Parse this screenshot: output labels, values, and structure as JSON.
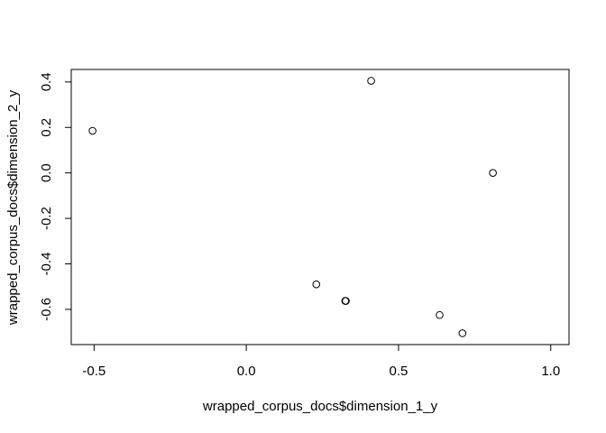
{
  "chart_data": {
    "type": "scatter",
    "xlabel": "wrapped_corpus_docs$dimension_1_y",
    "ylabel": "wrapped_corpus_docs$dimension_2_y",
    "xlim": [
      -0.575,
      1.06
    ],
    "ylim": [
      -0.755,
      0.455
    ],
    "grid": false,
    "marker": "open-circle",
    "x_ticks": [
      {
        "value": -0.5,
        "label": "-0.5"
      },
      {
        "value": 0.0,
        "label": "0.0"
      },
      {
        "value": 0.5,
        "label": "0.5"
      },
      {
        "value": 1.0,
        "label": "1.0"
      }
    ],
    "y_ticks": [
      {
        "value": -0.6,
        "label": "-0.6"
      },
      {
        "value": -0.4,
        "label": "-0.4"
      },
      {
        "value": -0.2,
        "label": "-0.2"
      },
      {
        "value": 0.0,
        "label": "0.0"
      },
      {
        "value": 0.2,
        "label": "0.2"
      },
      {
        "value": 0.4,
        "label": "0.4"
      }
    ],
    "points": [
      {
        "x": -0.505,
        "y": 0.185
      },
      {
        "x": 0.41,
        "y": 0.405
      },
      {
        "x": 0.81,
        "y": 0.0
      },
      {
        "x": 0.23,
        "y": -0.49
      },
      {
        "x": 0.325,
        "y": -0.563
      },
      {
        "x": 0.327,
        "y": -0.563
      },
      {
        "x": 0.635,
        "y": -0.625
      },
      {
        "x": 0.71,
        "y": -0.705
      }
    ]
  },
  "colors": {
    "foreground": "#000000",
    "background": "#ffffff"
  }
}
